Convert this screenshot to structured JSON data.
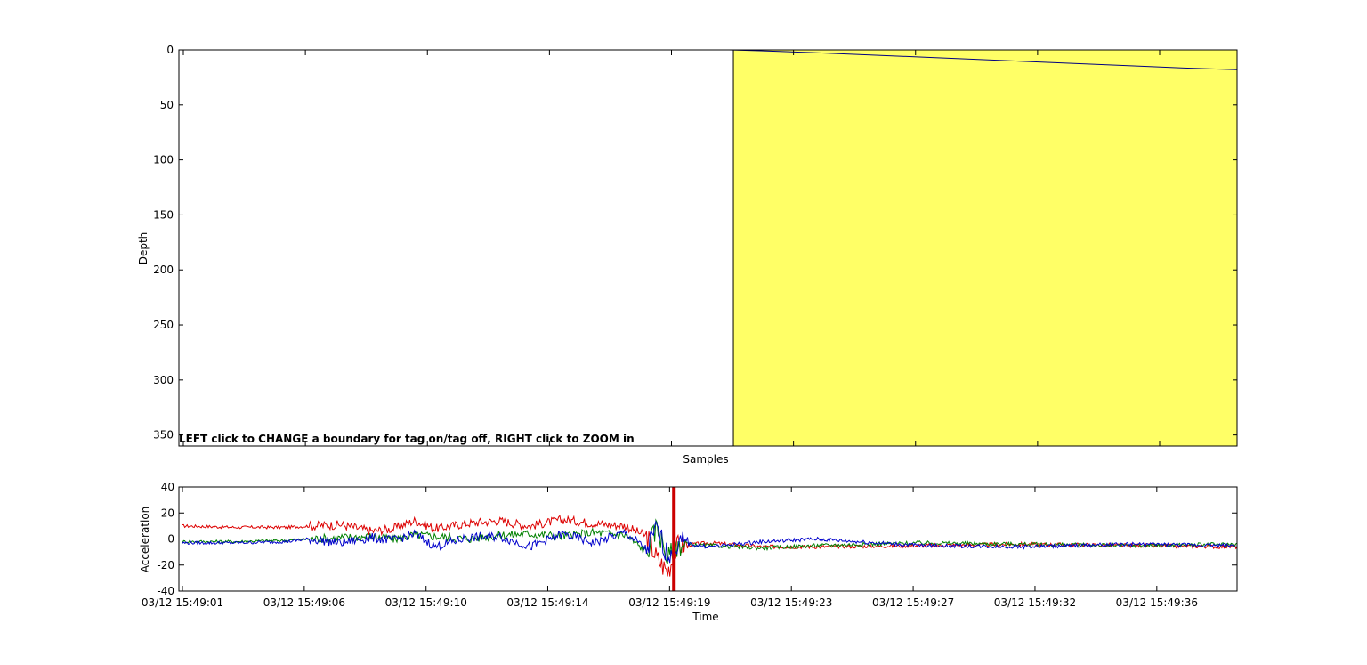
{
  "chart_data": [
    {
      "type": "line",
      "ylabel": "Depth",
      "xlabel": "Samples",
      "ylim": [
        0,
        360
      ],
      "y_reversed": true,
      "yticks": [
        0,
        50,
        100,
        150,
        200,
        250,
        300,
        350
      ],
      "xlim": [
        0,
        1
      ],
      "shaded_region": {
        "x_start": 0.524,
        "x_end": 1.0,
        "color": "#ffff66"
      },
      "series": [
        {
          "color": "#000080",
          "x": [
            0.52,
            0.55,
            0.6,
            0.7,
            0.8,
            0.9,
            0.95,
            1.0
          ],
          "y": [
            0,
            0.8,
            2.5,
            6.5,
            10.5,
            14.5,
            16.5,
            18
          ]
        }
      ],
      "annotation": "LEFT click to CHANGE a boundary for tag on/tag off, RIGHT click to ZOOM in"
    },
    {
      "type": "line",
      "ylabel": "Acceleration",
      "xlabel": "Time",
      "ylim": [
        -40,
        40
      ],
      "yticks": [
        -40,
        -20,
        0,
        20,
        40
      ],
      "xlim": [
        0,
        1
      ],
      "xticks": [
        {
          "x": 0.0,
          "label": "03/12 15:49:01"
        },
        {
          "x": 0.1155,
          "label": "03/12 15:49:06"
        },
        {
          "x": 0.231,
          "label": "03/12 15:49:10"
        },
        {
          "x": 0.3464,
          "label": "03/12 15:49:14"
        },
        {
          "x": 0.4619,
          "label": "03/12 15:49:19"
        },
        {
          "x": 0.5774,
          "label": "03/12 15:49:23"
        },
        {
          "x": 0.6929,
          "label": "03/12 15:49:27"
        },
        {
          "x": 0.8084,
          "label": "03/12 15:49:32"
        },
        {
          "x": 0.9239,
          "label": "03/12 15:49:36"
        }
      ],
      "marker_line": {
        "x": 0.466,
        "color": "#cc0000"
      },
      "series": [
        {
          "color": "#dd0000",
          "x": [
            0,
            0.05,
            0.1,
            0.12,
            0.15,
            0.18,
            0.2,
            0.22,
            0.24,
            0.27,
            0.3,
            0.33,
            0.36,
            0.39,
            0.42,
            0.44,
            0.45,
            0.46,
            0.47,
            0.5,
            0.55,
            0.6,
            0.7,
            0.8,
            0.9,
            1.0
          ],
          "y": [
            10,
            9,
            9,
            10,
            11,
            6,
            8,
            14,
            8,
            12,
            14,
            10,
            15,
            12,
            10,
            2,
            -15,
            -25,
            -5,
            -3,
            -6,
            -6,
            -5,
            -4,
            -5,
            -6
          ]
        },
        {
          "color": "#008000",
          "x": [
            0,
            0.05,
            0.1,
            0.12,
            0.15,
            0.18,
            0.2,
            0.22,
            0.24,
            0.27,
            0.3,
            0.33,
            0.36,
            0.39,
            0.42,
            0.44,
            0.45,
            0.46,
            0.47,
            0.5,
            0.55,
            0.6,
            0.7,
            0.8,
            0.9,
            1.0
          ],
          "y": [
            -2,
            -2,
            -1,
            0,
            1,
            2,
            0,
            3,
            2,
            0,
            3,
            4,
            2,
            5,
            3,
            -10,
            10,
            -15,
            -4,
            -5,
            -7,
            -5,
            -3,
            -4,
            -5,
            -4
          ]
        },
        {
          "color": "#0000cc",
          "x": [
            0,
            0.05,
            0.1,
            0.12,
            0.15,
            0.18,
            0.2,
            0.22,
            0.24,
            0.27,
            0.3,
            0.33,
            0.36,
            0.39,
            0.42,
            0.44,
            0.45,
            0.46,
            0.47,
            0.5,
            0.55,
            0.6,
            0.7,
            0.8,
            0.9,
            1.0
          ],
          "y": [
            -3,
            -3,
            -2,
            0,
            -3,
            1,
            -1,
            4,
            -6,
            1,
            2,
            -6,
            4,
            -3,
            5,
            -8,
            8,
            -12,
            -3,
            -6,
            -2,
            0,
            -5,
            -6,
            -4,
            -5
          ]
        }
      ]
    }
  ]
}
